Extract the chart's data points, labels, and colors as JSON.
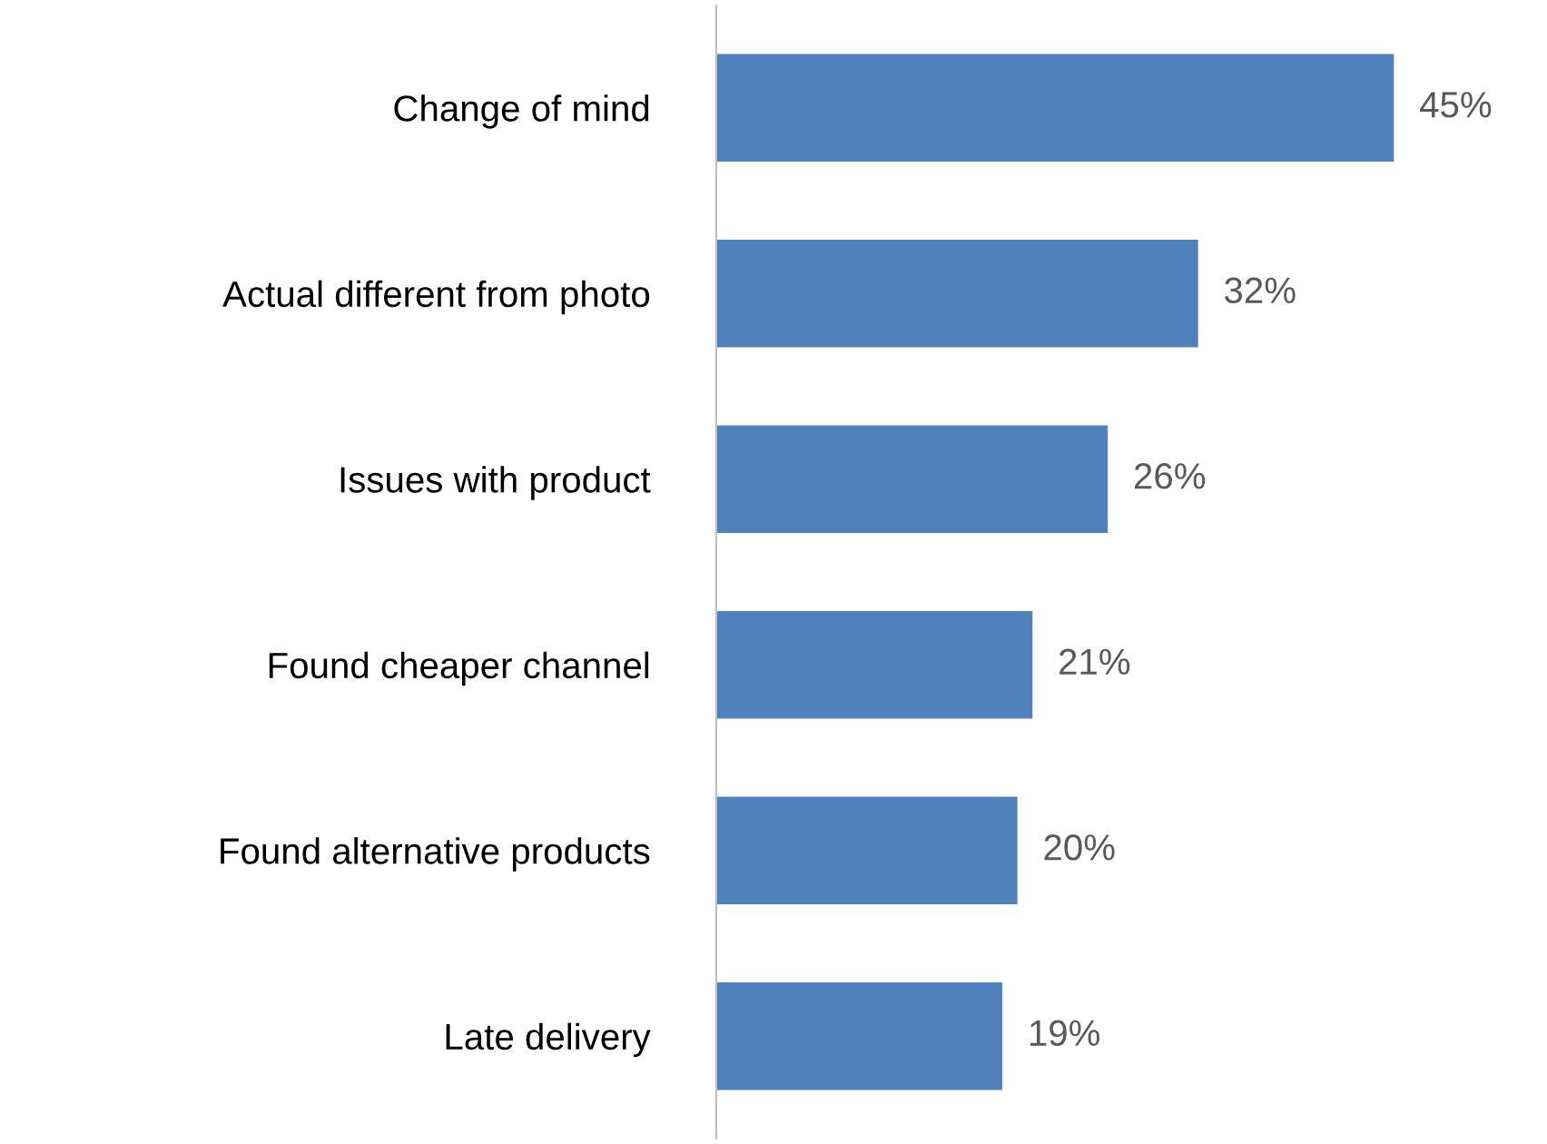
{
  "chart_data": {
    "type": "bar",
    "orientation": "horizontal",
    "categories": [
      "Change of mind",
      "Actual different from photo",
      "Issues with product",
      "Found cheaper channel",
      "Found alternative products",
      "Late delivery"
    ],
    "values": [
      45,
      32,
      26,
      21,
      20,
      19
    ],
    "value_labels": [
      "45%",
      "32%",
      "26%",
      "21%",
      "20%",
      "19%"
    ],
    "color": "#4f81bd",
    "grid": false,
    "legend": false
  }
}
